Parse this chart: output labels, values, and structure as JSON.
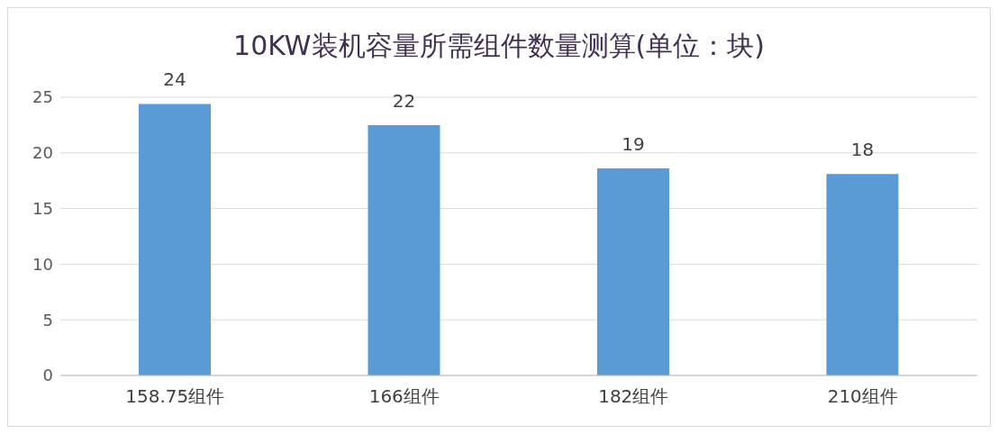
{
  "chart_data": {
    "type": "bar",
    "title": "10KW装机容量所需组件数量测算(单位：块)",
    "categories": [
      "158.75组件",
      "166组件",
      "182组件",
      "210组件"
    ],
    "values": [
      24.4,
      22.5,
      18.6,
      18.1
    ],
    "value_labels": [
      "24",
      "22",
      "19",
      "18"
    ],
    "color": "#5b9bd5",
    "ylim": [
      0,
      25
    ],
    "yticks": [
      0,
      5,
      10,
      15,
      20,
      25
    ],
    "grid": "y"
  }
}
